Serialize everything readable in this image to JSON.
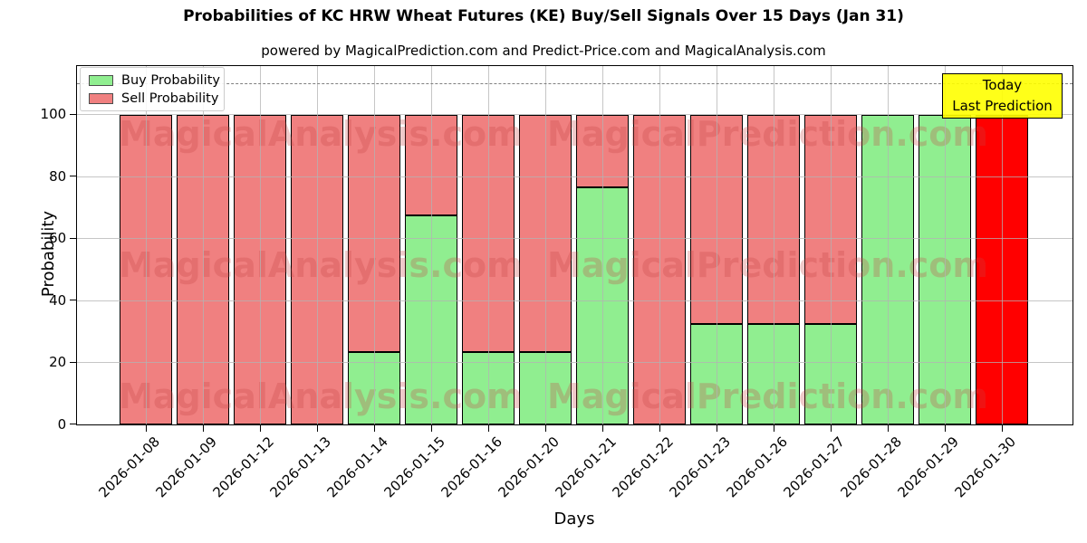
{
  "title": "Probabilities of KC HRW Wheat Futures (KE) Buy/Sell Signals Over 15 Days (Jan 31)",
  "subtitle": "powered by MagicalPrediction.com and Predict-Price.com and MagicalAnalysis.com",
  "legend": {
    "buy_label": "Buy Probability",
    "sell_label": "Sell Probability"
  },
  "annotation": {
    "line1": "Today",
    "line2": "Last Prediction"
  },
  "axes": {
    "xlabel": "Days",
    "ylabel": "Probability",
    "yticks": [
      0,
      20,
      40,
      60,
      80,
      100
    ]
  },
  "colors": {
    "buy": "#90EE90",
    "sell": "#F08080",
    "final_bar": "#FF0000",
    "edge": "#000000",
    "grid": "#B3B3B3",
    "dashed_line": "#7F7F7F",
    "annotation_bg": "#FFFF00",
    "watermark": "#C84646"
  },
  "watermarks": [
    "MagicalAnalysis.com",
    "MagicalPrediction.com"
  ],
  "chart_data": {
    "type": "bar",
    "stacked": true,
    "title": "Probabilities of KC HRW Wheat Futures (KE) Buy/Sell Signals Over 15 Days (Jan 31)",
    "xlabel": "Days",
    "ylabel": "Probability",
    "ylim": [
      0,
      115.5
    ],
    "dashed_line_y": 110,
    "grid": true,
    "legend_position": "upper left",
    "categories": [
      "2026-01-08",
      "2026-01-09",
      "2026-01-12",
      "2026-01-13",
      "2026-01-14",
      "2026-01-15",
      "2026-01-16",
      "2026-01-20",
      "2026-01-21",
      "2026-01-22",
      "2026-01-23",
      "2026-01-26",
      "2026-01-27",
      "2026-01-28",
      "2026-01-29",
      "2026-01-30"
    ],
    "series": [
      {
        "name": "Buy Probability",
        "color": "#90EE90",
        "values": [
          0,
          0,
          0,
          0,
          23.5,
          67.5,
          23.5,
          23.5,
          76.5,
          0,
          32.5,
          32.5,
          32.5,
          100,
          100,
          0
        ]
      },
      {
        "name": "Sell Probability",
        "color": "#F08080",
        "values": [
          100,
          100,
          100,
          100,
          76.5,
          32.5,
          76.5,
          76.5,
          23.5,
          100,
          67.5,
          67.5,
          67.5,
          0,
          0,
          100
        ]
      }
    ],
    "highlight_last_bar": {
      "category": "2026-01-30",
      "color": "#FF0000",
      "note": "Today / Last Prediction"
    }
  }
}
